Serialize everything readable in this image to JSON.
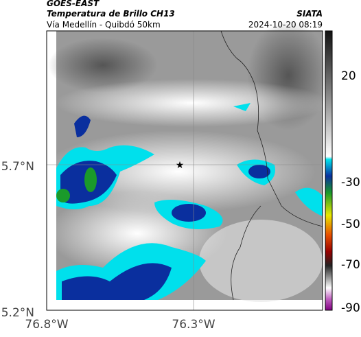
{
  "header": {
    "satellite": "GOES-EAST",
    "product": "Temperatura de Brillo CH13",
    "route": "Vía Medellín - Quibdó 50km",
    "source": "SIATA",
    "timestamp": "2024-10-20 08:19"
  },
  "axes": {
    "lat_labels": [
      "5.7°N",
      "5.2°N"
    ],
    "lon_labels": [
      "76.8°W",
      "76.3°W"
    ]
  },
  "colorbar": {
    "ticks": [
      20,
      -30,
      -50,
      -70,
      -90
    ]
  }
}
